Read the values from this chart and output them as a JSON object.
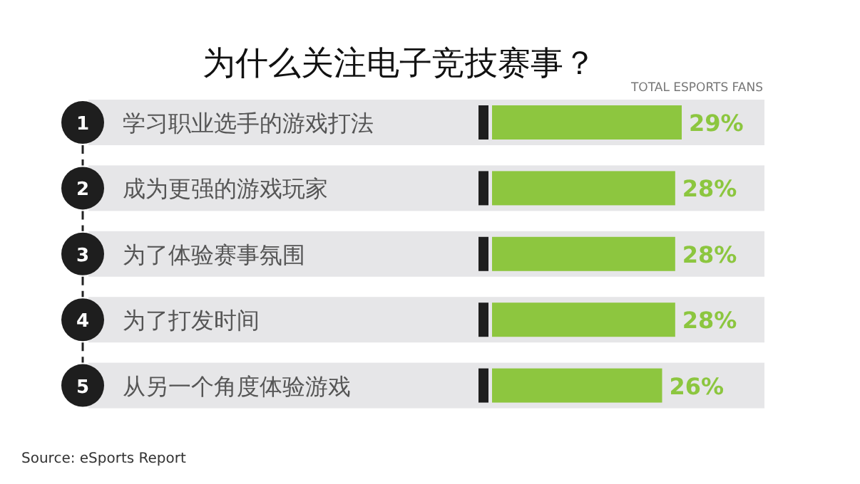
{
  "chart_data": {
    "type": "bar",
    "orientation": "horizontal",
    "title": "为什么关注电子竞技赛事？",
    "categories": [
      "学习职业选手的游戏打法",
      "成为更强的游戏玩家",
      "为了体验赛事氛围",
      "为了打发时间",
      "从另一个角度体验游戏"
    ],
    "values": [
      29,
      28,
      28,
      28,
      26
    ],
    "value_labels": [
      "29%",
      "28%",
      "28%",
      "28%",
      "26%"
    ],
    "color": "#8dc63f",
    "annotations": [
      "TOTAL ESPORTS FANS",
      "1",
      "2",
      "3",
      "4",
      "5",
      "Source: eSports Report"
    ]
  }
}
